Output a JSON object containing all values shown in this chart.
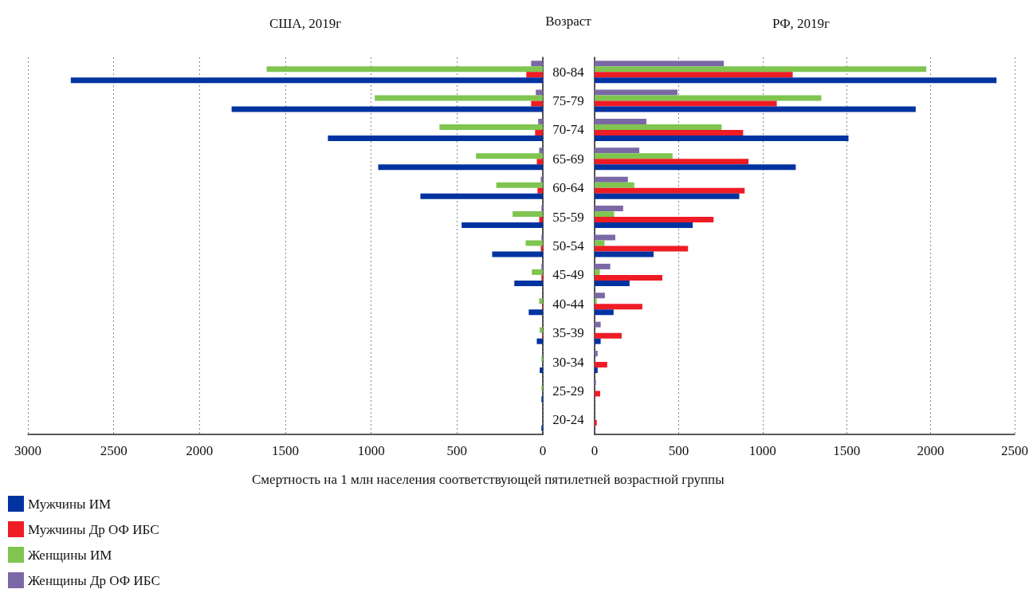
{
  "chart_data": [
    {
      "type": "bar",
      "orientation": "horizontal",
      "title": "США, 2019г",
      "xlabel": "Смертность на 1 млн населения соответствующей пятилетней возрастной группы",
      "categories": [
        null,
        null,
        null,
        null,
        null,
        null,
        null,
        null,
        null,
        null,
        null,
        null,
        null
      ],
      "xlim": [
        3000,
        0
      ],
      "xticks": [
        3000,
        2500,
        2000,
        1500,
        1000,
        500,
        0
      ],
      "grid": "x",
      "tick_labels": "x",
      "legend": "bottom left",
      "series": [
        {
          "name": "Мужчины ИМ",
          "color": "#0033a0",
          "values": [
            2750,
            1813,
            1252,
            959,
            713,
            473,
            295,
            166,
            82,
            35,
            18,
            8,
            8
          ]
        },
        {
          "name": "Мужчины Др ОФ ИБС",
          "color": "#ee1c25",
          "values": [
            96,
            68,
            45,
            35,
            31,
            21,
            12,
            8,
            4,
            4,
            null,
            0,
            0
          ]
        },
        {
          "name": "Женщины ИМ",
          "color": "#7fc550",
          "values": [
            1609,
            979,
            602,
            389,
            271,
            176,
            100,
            64,
            21,
            18,
            8,
            8,
            0
          ]
        },
        {
          "name": "Женщины Др ОФ ИБС",
          "color": "#7b68a6",
          "values": [
            68,
            41,
            27,
            21,
            12,
            8,
            8,
            8,
            null,
            null,
            null,
            0,
            0
          ]
        }
      ]
    },
    {
      "type": "bar",
      "orientation": "horizontal",
      "title": "РФ, 2019г",
      "ylabel": "Возраст",
      "categories": [
        "80-84",
        "75-79",
        "70-74",
        "65-69",
        "60-64",
        "55-59",
        "50-54",
        "45-49",
        "40-44",
        "35-39",
        "30-34",
        "25-29",
        "20-24"
      ],
      "xlim": [
        0,
        2500
      ],
      "xticks": [
        0,
        500,
        1000,
        1500,
        2000,
        2500
      ],
      "grid": "x",
      "series": [
        {
          "color": "#0033a0",
          "values": [
            2392,
            1911,
            1511,
            1197,
            861,
            584,
            351,
            208,
            113,
            36,
            18,
            0,
            0
          ]
        },
        {
          "color": "#ee1c25",
          "values": [
            1179,
            1084,
            884,
            916,
            893,
            708,
            556,
            403,
            284,
            161,
            75,
            33,
            13
          ]
        },
        {
          "color": "#7fc550",
          "values": [
            1974,
            1349,
            756,
            464,
            236,
            116,
            59,
            31,
            13,
            0,
            0,
            0,
            0
          ]
        },
        {
          "color": "#7b68a6",
          "values": [
            769,
            493,
            308,
            266,
            198,
            170,
            123,
            93,
            61,
            36,
            18,
            8,
            0
          ]
        }
      ]
    }
  ]
}
